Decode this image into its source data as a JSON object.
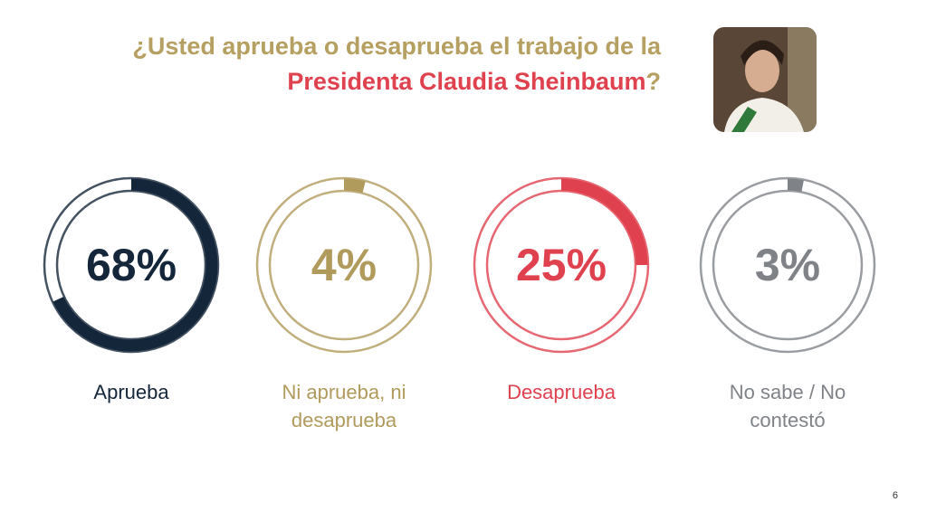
{
  "title": {
    "line1": "¿Usted aprueba o desaprueba el trabajo de la",
    "highlight": "Presidenta Claudia Sheinbaum",
    "end": "?"
  },
  "page_number": "6",
  "chart_data": [
    {
      "type": "donut",
      "categories": [
        "Aprueba"
      ],
      "values": [
        68
      ],
      "value_labels": [
        "68%"
      ],
      "color": "#14263a"
    },
    {
      "type": "donut",
      "categories": [
        "Ni aprueba, ni desaprueba"
      ],
      "values": [
        4
      ],
      "value_labels": [
        "4%"
      ],
      "color": "#b09a5c"
    },
    {
      "type": "donut",
      "categories": [
        "Desaprueba"
      ],
      "values": [
        25
      ],
      "value_labels": [
        "25%"
      ],
      "color": "#e0414f"
    },
    {
      "type": "donut",
      "categories": [
        "No sabe / No contestó"
      ],
      "values": [
        3
      ],
      "value_labels": [
        "3%"
      ],
      "color": "#7f8388"
    }
  ]
}
